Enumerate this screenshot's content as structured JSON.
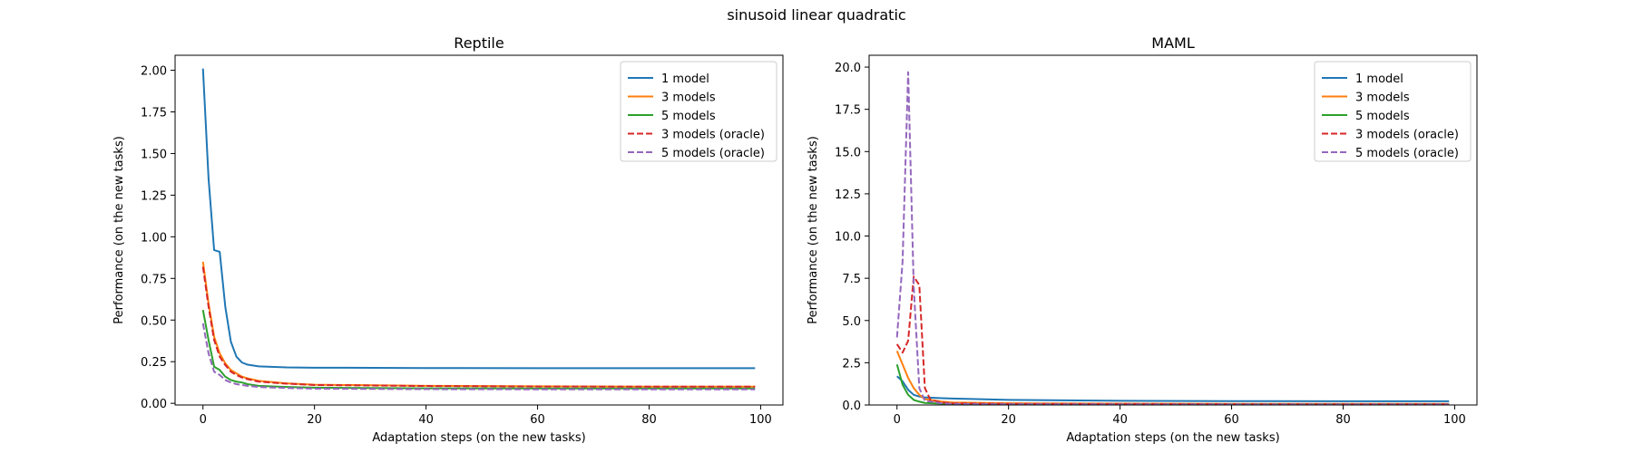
{
  "figure": {
    "suptitle": "sinusoid linear quadratic"
  },
  "chart_data": [
    {
      "type": "line",
      "title": "Reptile",
      "xlabel": "Adaptation steps (on the new tasks)",
      "ylabel": "Performance (on the new tasks)",
      "xlim": [
        -5,
        104
      ],
      "ylim": [
        -0.01,
        2.09
      ],
      "xticks": [
        0,
        20,
        40,
        60,
        80,
        100
      ],
      "yticks": [
        0.0,
        0.25,
        0.5,
        0.75,
        1.0,
        1.25,
        1.5,
        1.75,
        2.0
      ],
      "xtick_labels": [
        "0",
        "20",
        "40",
        "60",
        "80",
        "100"
      ],
      "ytick_labels": [
        "0.00",
        "0.25",
        "0.50",
        "0.75",
        "1.00",
        "1.25",
        "1.50",
        "1.75",
        "2.00"
      ],
      "legend_position": "top-right",
      "series": [
        {
          "name": "1 model",
          "color": "#1f77b4",
          "dash": "solid",
          "points": [
            [
              0,
              2.01
            ],
            [
              1,
              1.35
            ],
            [
              2,
              0.92
            ],
            [
              3,
              0.91
            ],
            [
              4,
              0.58
            ],
            [
              5,
              0.37
            ],
            [
              6,
              0.28
            ],
            [
              7,
              0.245
            ],
            [
              8,
              0.232
            ],
            [
              10,
              0.222
            ],
            [
              15,
              0.216
            ],
            [
              20,
              0.214
            ],
            [
              40,
              0.212
            ],
            [
              60,
              0.211
            ],
            [
              80,
              0.211
            ],
            [
              99,
              0.211
            ]
          ]
        },
        {
          "name": "3 models",
          "color": "#ff7f0e",
          "dash": "solid",
          "points": [
            [
              0,
              0.85
            ],
            [
              1,
              0.6
            ],
            [
              2,
              0.4
            ],
            [
              3,
              0.3
            ],
            [
              4,
              0.24
            ],
            [
              5,
              0.2
            ],
            [
              6,
              0.18
            ],
            [
              7,
              0.16
            ],
            [
              8,
              0.15
            ],
            [
              10,
              0.135
            ],
            [
              15,
              0.12
            ],
            [
              20,
              0.112
            ],
            [
              40,
              0.105
            ],
            [
              60,
              0.102
            ],
            [
              80,
              0.1
            ],
            [
              99,
              0.1
            ]
          ]
        },
        {
          "name": "5 models",
          "color": "#2ca02c",
          "dash": "solid",
          "points": [
            [
              0,
              0.56
            ],
            [
              1,
              0.38
            ],
            [
              2,
              0.22
            ],
            [
              3,
              0.2
            ],
            [
              4,
              0.16
            ],
            [
              5,
              0.14
            ],
            [
              6,
              0.13
            ],
            [
              7,
              0.125
            ],
            [
              8,
              0.115
            ],
            [
              10,
              0.105
            ],
            [
              15,
              0.098
            ],
            [
              20,
              0.094
            ],
            [
              40,
              0.09
            ],
            [
              60,
              0.089
            ],
            [
              80,
              0.089
            ],
            [
              99,
              0.089
            ]
          ]
        },
        {
          "name": "3 models (oracle)",
          "color": "#d62728",
          "dash": "dashed",
          "points": [
            [
              0,
              0.82
            ],
            [
              1,
              0.58
            ],
            [
              2,
              0.38
            ],
            [
              3,
              0.28
            ],
            [
              4,
              0.23
            ],
            [
              5,
              0.19
            ],
            [
              6,
              0.17
            ],
            [
              7,
              0.155
            ],
            [
              8,
              0.145
            ],
            [
              10,
              0.13
            ],
            [
              15,
              0.118
            ],
            [
              20,
              0.11
            ],
            [
              40,
              0.104
            ],
            [
              60,
              0.101
            ],
            [
              80,
              0.1
            ],
            [
              99,
              0.1
            ]
          ]
        },
        {
          "name": "5 models (oracle)",
          "color": "#9467bd",
          "dash": "dashed",
          "points": [
            [
              0,
              0.48
            ],
            [
              1,
              0.3
            ],
            [
              2,
              0.19
            ],
            [
              3,
              0.17
            ],
            [
              4,
              0.14
            ],
            [
              5,
              0.125
            ],
            [
              6,
              0.115
            ],
            [
              7,
              0.11
            ],
            [
              8,
              0.105
            ],
            [
              10,
              0.098
            ],
            [
              15,
              0.092
            ],
            [
              20,
              0.088
            ],
            [
              40,
              0.085
            ],
            [
              60,
              0.084
            ],
            [
              80,
              0.084
            ],
            [
              99,
              0.084
            ]
          ]
        }
      ]
    },
    {
      "type": "line",
      "title": "MAML",
      "xlabel": "Adaptation steps (on the new tasks)",
      "ylabel": "Performance (on the new tasks)",
      "xlim": [
        -5,
        104
      ],
      "ylim": [
        0,
        20.7
      ],
      "xticks": [
        0,
        20,
        40,
        60,
        80,
        100
      ],
      "yticks": [
        0.0,
        2.5,
        5.0,
        7.5,
        10.0,
        12.5,
        15.0,
        17.5,
        20.0
      ],
      "xtick_labels": [
        "0",
        "20",
        "40",
        "60",
        "80",
        "100"
      ],
      "ytick_labels": [
        "0.0",
        "2.5",
        "5.0",
        "7.5",
        "10.0",
        "12.5",
        "15.0",
        "17.5",
        "20.0"
      ],
      "legend_position": "top-right",
      "series": [
        {
          "name": "1 model",
          "color": "#1f77b4",
          "dash": "solid",
          "points": [
            [
              0,
              1.7
            ],
            [
              1,
              1.4
            ],
            [
              2,
              0.9
            ],
            [
              3,
              0.6
            ],
            [
              4,
              0.5
            ],
            [
              5,
              0.45
            ],
            [
              8,
              0.4
            ],
            [
              10,
              0.38
            ],
            [
              20,
              0.3
            ],
            [
              40,
              0.25
            ],
            [
              60,
              0.23
            ],
            [
              80,
              0.22
            ],
            [
              99,
              0.22
            ]
          ]
        },
        {
          "name": "3 models",
          "color": "#ff7f0e",
          "dash": "solid",
          "points": [
            [
              0,
              3.2
            ],
            [
              1,
              2.4
            ],
            [
              2,
              1.6
            ],
            [
              3,
              1.0
            ],
            [
              4,
              0.6
            ],
            [
              5,
              0.35
            ],
            [
              8,
              0.2
            ],
            [
              10,
              0.15
            ],
            [
              20,
              0.1
            ],
            [
              40,
              0.08
            ],
            [
              60,
              0.07
            ],
            [
              80,
              0.07
            ],
            [
              99,
              0.07
            ]
          ]
        },
        {
          "name": "5 models",
          "color": "#2ca02c",
          "dash": "solid",
          "points": [
            [
              0,
              2.4
            ],
            [
              1,
              1.2
            ],
            [
              2,
              0.6
            ],
            [
              3,
              0.3
            ],
            [
              4,
              0.2
            ],
            [
              5,
              0.12
            ],
            [
              8,
              0.08
            ],
            [
              10,
              0.06
            ],
            [
              20,
              0.05
            ],
            [
              40,
              0.04
            ],
            [
              60,
              0.04
            ],
            [
              80,
              0.04
            ],
            [
              99,
              0.04
            ]
          ]
        },
        {
          "name": "3 models (oracle)",
          "color": "#d62728",
          "dash": "dashed",
          "points": [
            [
              0,
              3.6
            ],
            [
              1,
              3.1
            ],
            [
              2,
              3.8
            ],
            [
              3,
              7.6
            ],
            [
              4,
              7.1
            ],
            [
              5,
              1.0
            ],
            [
              6,
              0.3
            ],
            [
              8,
              0.15
            ],
            [
              10,
              0.1
            ],
            [
              20,
              0.07
            ],
            [
              40,
              0.06
            ],
            [
              60,
              0.05
            ],
            [
              80,
              0.05
            ],
            [
              99,
              0.05
            ]
          ]
        },
        {
          "name": "5 models (oracle)",
          "color": "#9467bd",
          "dash": "dashed",
          "points": [
            [
              0,
              4.0
            ],
            [
              1,
              8.5
            ],
            [
              2,
              19.7
            ],
            [
              3,
              7.0
            ],
            [
              4,
              1.0
            ],
            [
              5,
              0.25
            ],
            [
              8,
              0.1
            ],
            [
              10,
              0.06
            ],
            [
              20,
              0.04
            ],
            [
              40,
              0.03
            ],
            [
              60,
              0.03
            ],
            [
              80,
              0.03
            ],
            [
              99,
              0.03
            ]
          ]
        }
      ]
    }
  ]
}
